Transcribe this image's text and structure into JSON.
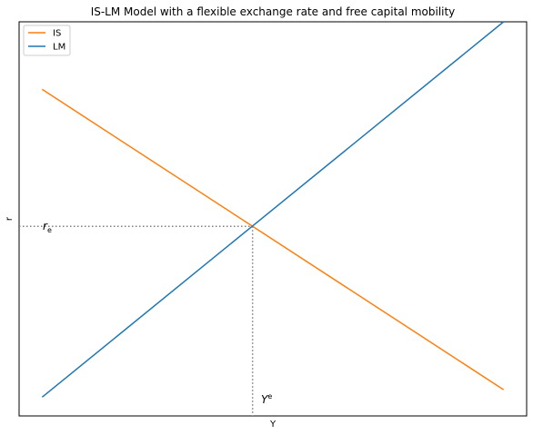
{
  "chart_data": {
    "type": "line",
    "title": "IS-LM Model with a flexible exchange rate and free capital mobility",
    "xlabel": "Y",
    "ylabel": "r",
    "xlim": [
      -0.05,
      1.05
    ],
    "ylim": [
      -0.05,
      1.0
    ],
    "grid": false,
    "legend_position": "top-left",
    "series": [
      {
        "name": "IS",
        "color": "#ff7f0e",
        "x": [
          0,
          1
        ],
        "y": [
          0.82,
          0.02
        ]
      },
      {
        "name": "LM",
        "color": "#1f77b4",
        "x": [
          0,
          1
        ],
        "y": [
          0.0,
          1.0
        ]
      }
    ],
    "equilibrium": {
      "x": 0.456,
      "y": 0.455,
      "y_label": "r",
      "y_label_sub": "e",
      "x_label": "Y",
      "x_label_sup": "e"
    }
  }
}
